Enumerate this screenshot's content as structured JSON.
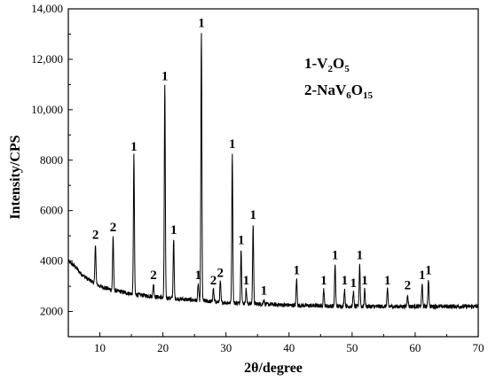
{
  "chart_data": {
    "type": "line",
    "xlabel": "2θ/degree",
    "ylabel": "Intensity/CPS",
    "xlim": [
      5,
      70
    ],
    "ylim": [
      1000,
      14000
    ],
    "x_ticks": [
      10,
      20,
      30,
      40,
      50,
      60,
      70
    ],
    "x_tick_labels": [
      "10",
      "20",
      "30",
      "40",
      "50",
      "60",
      "70"
    ],
    "y_ticks": [
      2000,
      4000,
      6000,
      8000,
      10000,
      12000,
      14000
    ],
    "y_tick_labels": [
      "2000",
      "4000",
      "6000",
      "8000",
      "10,000",
      "12,000",
      "14,000"
    ],
    "grid": false,
    "legend": {
      "placement": "top-right",
      "entries": [
        {
          "prefix": "1-V",
          "sub1": "2",
          "mid": "O",
          "sub2": "5"
        },
        {
          "prefix": "2-NaV",
          "sub1": "6",
          "mid": "O",
          "sub2": "15"
        }
      ]
    },
    "baseline": [
      [
        5,
        4000
      ],
      [
        6,
        3800
      ],
      [
        7,
        3500
      ],
      [
        8,
        3300
      ],
      [
        10,
        3000
      ],
      [
        12,
        2850
      ],
      [
        15,
        2700
      ],
      [
        20,
        2550
      ],
      [
        25,
        2450
      ],
      [
        30,
        2350
      ],
      [
        35,
        2300
      ],
      [
        40,
        2250
      ],
      [
        50,
        2200
      ],
      [
        60,
        2200
      ],
      [
        70,
        2200
      ]
    ],
    "peaks": [
      {
        "x": 9.3,
        "y": 4700,
        "label": "2"
      },
      {
        "x": 12.1,
        "y": 5000,
        "label": "2"
      },
      {
        "x": 15.4,
        "y": 8200,
        "label": "1"
      },
      {
        "x": 18.5,
        "y": 3100,
        "label": "2"
      },
      {
        "x": 20.3,
        "y": 11000,
        "label": "1"
      },
      {
        "x": 21.7,
        "y": 4900,
        "label": "1"
      },
      {
        "x": 25.6,
        "y": 3100,
        "label": "1"
      },
      {
        "x": 26.1,
        "y": 13100,
        "label": "1"
      },
      {
        "x": 28.0,
        "y": 2900,
        "label": "2"
      },
      {
        "x": 29.1,
        "y": 3200,
        "label": "2"
      },
      {
        "x": 31.0,
        "y": 8300,
        "label": "1"
      },
      {
        "x": 32.4,
        "y": 4500,
        "label": "1"
      },
      {
        "x": 33.2,
        "y": 2900,
        "label": "1"
      },
      {
        "x": 34.3,
        "y": 5500,
        "label": "1"
      },
      {
        "x": 36.0,
        "y": 2500,
        "label": "1"
      },
      {
        "x": 41.2,
        "y": 3300,
        "label": "1"
      },
      {
        "x": 45.5,
        "y": 2900,
        "label": "1"
      },
      {
        "x": 47.3,
        "y": 3900,
        "label": "1"
      },
      {
        "x": 48.8,
        "y": 2900,
        "label": "1"
      },
      {
        "x": 50.2,
        "y": 2800,
        "label": "1"
      },
      {
        "x": 51.2,
        "y": 3900,
        "label": "1"
      },
      {
        "x": 52.0,
        "y": 2900,
        "label": "1"
      },
      {
        "x": 55.6,
        "y": 2900,
        "label": "1"
      },
      {
        "x": 58.8,
        "y": 2700,
        "label": "2"
      },
      {
        "x": 61.1,
        "y": 3100,
        "label": "1"
      },
      {
        "x": 62.1,
        "y": 3300,
        "label": "1"
      }
    ]
  }
}
